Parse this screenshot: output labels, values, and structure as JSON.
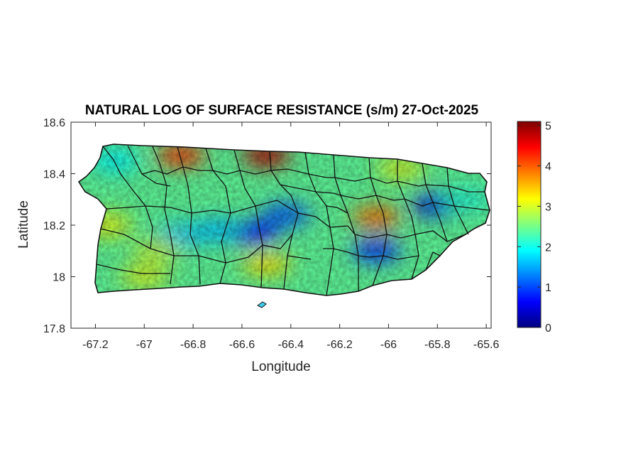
{
  "title": "NATURAL LOG OF SURFACE RESISTANCE (s/m) 27-Oct-2025",
  "xlabel": "Longitude",
  "ylabel": "Latitude",
  "map": {
    "region": "Puerto Rico",
    "colormap": "jet",
    "xlim": [
      -67.3,
      -65.58
    ],
    "ylim": [
      17.8,
      18.6
    ],
    "x_ticks": [
      "-67.2",
      "-67",
      "-66.8",
      "-66.6",
      "-66.4",
      "-66.2",
      "-66",
      "-65.8",
      "-65.6"
    ],
    "y_ticks": [
      "17.8",
      "18",
      "18.2",
      "18.4",
      "18.6"
    ],
    "x_tick_values": [
      -67.2,
      -67,
      -66.8,
      -66.6,
      -66.4,
      -66.2,
      -66,
      -65.8,
      -65.6
    ],
    "y_tick_values": [
      17.8,
      18.0,
      18.2,
      18.4,
      18.6
    ],
    "colorbar": {
      "ticks": [
        "0",
        "1",
        "2",
        "3",
        "4",
        "5"
      ],
      "tick_values": [
        0,
        1,
        2,
        3,
        4,
        5
      ],
      "range": [
        0,
        5.1
      ]
    },
    "background_value": 2.4,
    "hotspots": [
      {
        "lon": -66.55,
        "lat": 18.17,
        "value": 0.7
      },
      {
        "lon": -66.42,
        "lat": 18.24,
        "value": 1.1
      },
      {
        "lon": -66.05,
        "lat": 18.1,
        "value": 0.9
      },
      {
        "lon": -65.8,
        "lat": 18.28,
        "value": 0.5
      },
      {
        "lon": -66.85,
        "lat": 18.16,
        "value": 1.7
      },
      {
        "lon": -66.7,
        "lat": 18.18,
        "value": 1.6
      },
      {
        "lon": -66.5,
        "lat": 18.47,
        "value": 4.8
      },
      {
        "lon": -66.85,
        "lat": 18.47,
        "value": 4.2
      },
      {
        "lon": -66.05,
        "lat": 18.23,
        "value": 3.9
      },
      {
        "lon": -66.5,
        "lat": 18.05,
        "value": 3.3
      },
      {
        "lon": -67.15,
        "lat": 18.2,
        "value": 3.1
      },
      {
        "lon": -65.95,
        "lat": 18.42,
        "value": 3.0
      },
      {
        "lon": -66.95,
        "lat": 18.1,
        "value": 2.9
      },
      {
        "lon": -67.12,
        "lat": 18.45,
        "value": 1.9
      },
      {
        "lon": -65.68,
        "lat": 18.3,
        "value": 2.1
      },
      {
        "lon": -67.0,
        "lat": 18.0,
        "value": 3.0
      }
    ]
  }
}
